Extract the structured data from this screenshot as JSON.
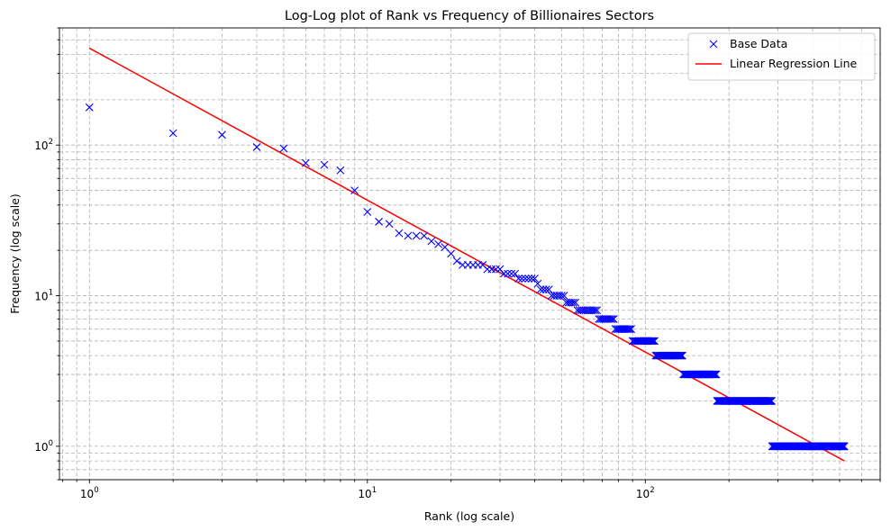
{
  "chart_data": {
    "type": "scatter",
    "title": "Log-Log plot of Rank vs Frequency of Billionaires Sectors",
    "xlabel": "Rank (log scale)",
    "ylabel": "Frequency (log scale)",
    "xscale": "log",
    "yscale": "log",
    "xlim": [
      0.78,
      700
    ],
    "ylim": [
      0.6,
      600
    ],
    "x_ticks": [
      {
        "value": 1,
        "base": "10",
        "exp": "0"
      },
      {
        "value": 10,
        "base": "10",
        "exp": "1"
      },
      {
        "value": 100,
        "base": "10",
        "exp": "2"
      }
    ],
    "y_ticks": [
      {
        "value": 1,
        "base": "10",
        "exp": "0"
      },
      {
        "value": 10,
        "base": "10",
        "exp": "1"
      },
      {
        "value": 100,
        "base": "10",
        "exp": "2"
      }
    ],
    "grid": true,
    "legend_position": "top-right",
    "series": [
      {
        "name": "Base Data",
        "kind": "marker",
        "marker": "x",
        "color": "#0000ff",
        "head_points": [
          [
            1,
            178
          ],
          [
            2,
            120
          ],
          [
            3,
            117
          ],
          [
            4,
            97
          ],
          [
            5,
            95
          ],
          [
            6,
            76
          ],
          [
            7,
            74
          ],
          [
            8,
            68
          ],
          [
            9,
            50
          ],
          [
            10,
            36
          ],
          [
            11,
            31
          ],
          [
            12,
            30
          ],
          [
            13,
            26
          ],
          [
            14,
            25
          ],
          [
            15,
            25
          ],
          [
            16,
            25
          ],
          [
            17,
            23
          ],
          [
            18,
            22
          ],
          [
            19,
            21
          ],
          [
            20,
            19
          ],
          [
            21,
            17
          ]
        ],
        "runs": [
          {
            "from": 22,
            "to": 26,
            "y": 16
          },
          {
            "from": 27,
            "to": 30,
            "y": 15
          },
          {
            "from": 31,
            "to": 34,
            "y": 14
          },
          {
            "from": 35,
            "to": 40,
            "y": 13
          },
          {
            "from": 41,
            "to": 41,
            "y": 12
          },
          {
            "from": 42,
            "to": 45,
            "y": 11
          },
          {
            "from": 46,
            "to": 51,
            "y": 10
          },
          {
            "from": 52,
            "to": 56,
            "y": 9
          },
          {
            "from": 57,
            "to": 67,
            "y": 8
          },
          {
            "from": 68,
            "to": 77,
            "y": 7
          },
          {
            "from": 78,
            "to": 89,
            "y": 6
          },
          {
            "from": 90,
            "to": 108,
            "y": 5
          },
          {
            "from": 109,
            "to": 136,
            "y": 4
          },
          {
            "from": 137,
            "to": 180,
            "y": 3
          },
          {
            "from": 181,
            "to": 285,
            "y": 2
          },
          {
            "from": 286,
            "to": 520,
            "y": 1
          }
        ]
      },
      {
        "name": "Linear Regression Line",
        "kind": "line",
        "color": "#ff0000",
        "points": [
          [
            1,
            440
          ],
          [
            520,
            0.8
          ]
        ]
      }
    ]
  }
}
